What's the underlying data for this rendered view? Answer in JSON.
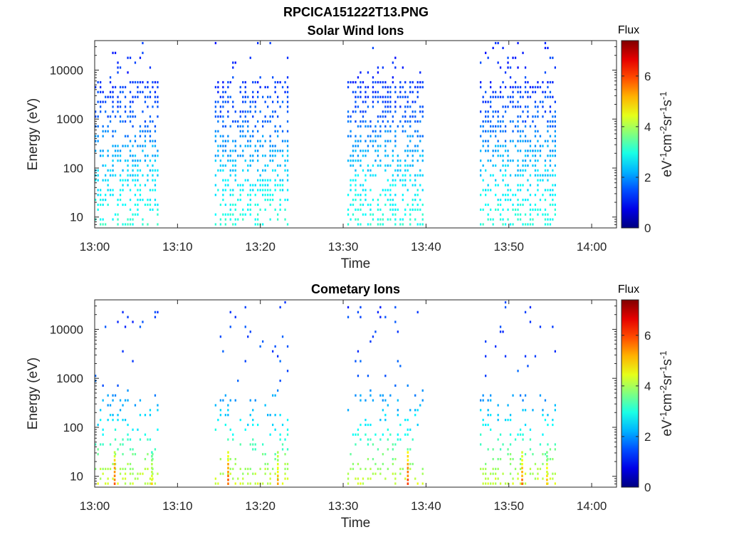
{
  "figure_title": "RPCICA151222T13.PNG",
  "chart_data": [
    {
      "type": "heatmap",
      "title": "Solar Wind Ions",
      "xlabel": "Time",
      "ylabel": "Energy (eV)",
      "y_scale": "log",
      "ylim": [
        6,
        40000
      ],
      "xlim": [
        "13:00",
        "14:03"
      ],
      "x_ticks": [
        "13:00",
        "13:10",
        "13:20",
        "13:30",
        "13:40",
        "13:50",
        "14:00"
      ],
      "y_ticks": [
        "10",
        "100",
        "1000",
        "10000"
      ],
      "grid": false,
      "colorbar": {
        "title": "Flux",
        "label": "eV-1cm-2sr-1s-1",
        "ticks": [
          "0",
          "2",
          "4",
          "6"
        ],
        "range": [
          0,
          7.4
        ],
        "colormap": "jet"
      },
      "data_intervals": [
        [
          "13:00",
          "13:07.5"
        ],
        [
          "13:14.5",
          "13:23.5"
        ],
        [
          "13:30.5",
          "13:39.5"
        ],
        [
          "13:46.5",
          "13:55.5"
        ]
      ],
      "flux_profile": [
        {
          "energy": 8,
          "flux": 3.0
        },
        {
          "energy": 40,
          "flux": 2.7
        },
        {
          "energy": 200,
          "flux": 2.2
        },
        {
          "energy": 1000,
          "flux": 1.6
        },
        {
          "energy": 5000,
          "flux": 1.3
        },
        {
          "energy": 30000,
          "flux": 1.2
        }
      ]
    },
    {
      "type": "heatmap",
      "title": "Cometary Ions",
      "xlabel": "Time",
      "ylabel": "Energy (eV)",
      "y_scale": "log",
      "ylim": [
        6,
        40000
      ],
      "xlim": [
        "13:00",
        "14:03"
      ],
      "x_ticks": [
        "13:00",
        "13:10",
        "13:20",
        "13:30",
        "13:40",
        "13:50",
        "14:00"
      ],
      "y_ticks": [
        "10",
        "100",
        "1000",
        "10000"
      ],
      "grid": false,
      "colorbar": {
        "title": "Flux",
        "label": "eV-1cm-2sr-1s-1",
        "ticks": [
          "0",
          "2",
          "4",
          "6"
        ],
        "range": [
          0,
          7.4
        ],
        "colormap": "jet"
      },
      "data_intervals": [
        [
          "13:00",
          "13:07.5"
        ],
        [
          "13:14.5",
          "13:23.5"
        ],
        [
          "13:30.5",
          "13:39.5"
        ],
        [
          "13:46.5",
          "13:55.5"
        ]
      ],
      "flux_profile": [
        {
          "energy": 8,
          "flux": 4.2
        },
        {
          "energy": 20,
          "flux": 3.8
        },
        {
          "energy": 100,
          "flux": 2.7
        },
        {
          "energy": 300,
          "flux": 2.2
        },
        {
          "energy": 1000,
          "flux": 1.5
        },
        {
          "energy": 30000,
          "flux": 1.3
        }
      ],
      "spikes": [
        {
          "time": "13:02.3",
          "flux": 5.8
        },
        {
          "time": "13:06.8",
          "flux": 4.8
        },
        {
          "time": "13:16.0",
          "flux": 5.9
        },
        {
          "time": "13:22.0",
          "flux": 5.2
        },
        {
          "time": "13:37.7",
          "flux": 6.0
        },
        {
          "time": "13:51.5",
          "flux": 5.6
        },
        {
          "time": "13:54.5",
          "flux": 5.0
        }
      ]
    }
  ]
}
